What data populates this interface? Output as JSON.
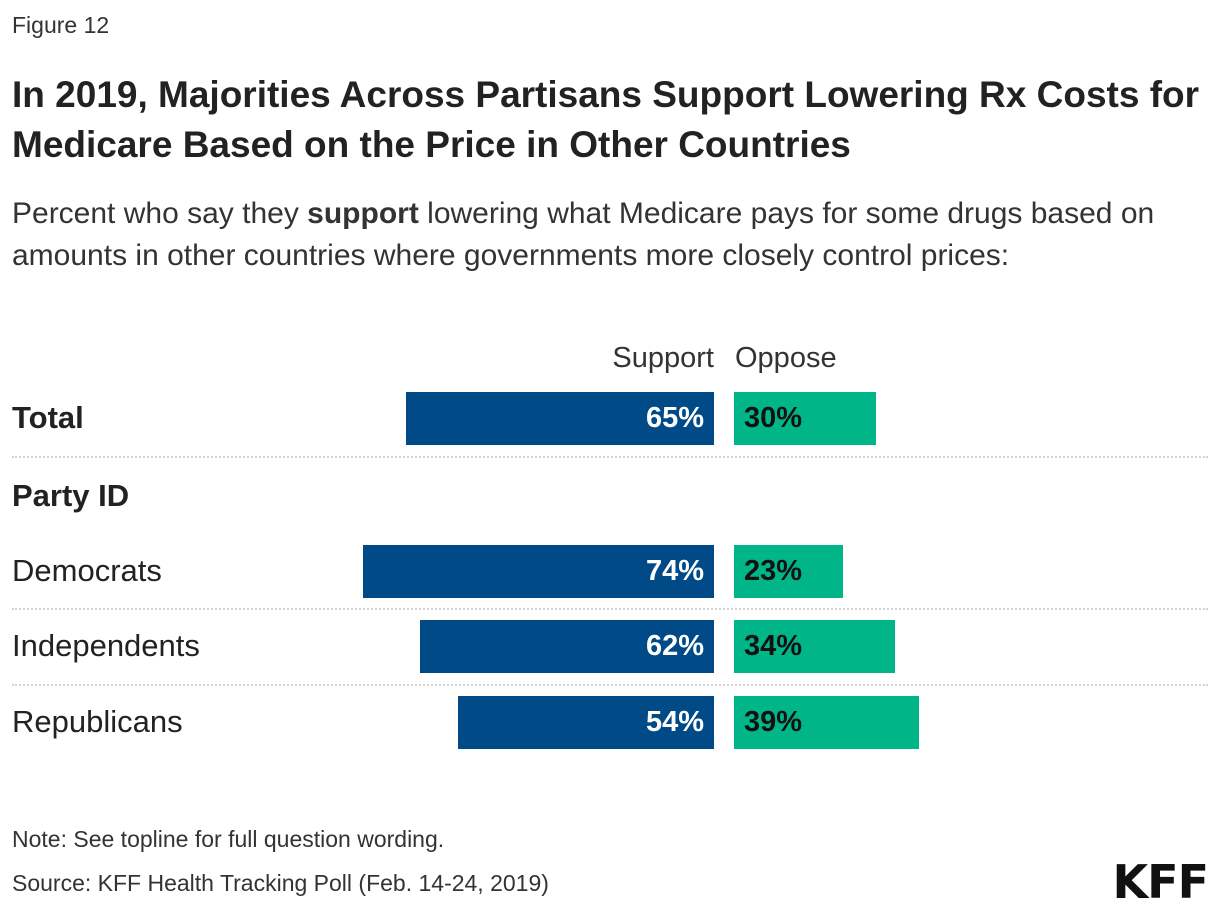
{
  "figure_label": "Figure 12",
  "title": "In 2019, Majorities Across Partisans Support Lowering Rx Costs for Medicare Based on the Price in Other Countries",
  "subtitle": {
    "before": "Percent who say they ",
    "bold": "support",
    "after": " lowering what Medicare pays for some drugs based on amounts in other countries where governments more closely control prices:"
  },
  "chart_data": {
    "type": "bar",
    "orientation": "horizontal-diverging",
    "series": [
      {
        "name": "Support",
        "color": "#004a87",
        "values": [
          65,
          74,
          62,
          54
        ]
      },
      {
        "name": "Oppose",
        "color": "#00b588",
        "values": [
          30,
          23,
          34,
          39
        ]
      }
    ],
    "categories": [
      "Total",
      "Democrats",
      "Independents",
      "Republicans"
    ],
    "group_label": "Party ID",
    "value_suffix": "%",
    "grid": false
  },
  "notes": {
    "note": "Note: See topline for full question wording.",
    "source": "Source: KFF Health Tracking Poll (Feb. 14-24, 2019)"
  },
  "logo": "KFF"
}
